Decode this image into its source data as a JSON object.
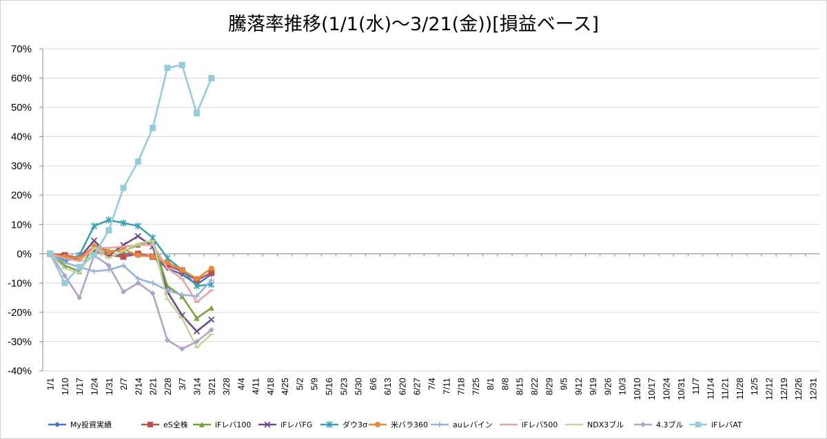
{
  "chart_data": {
    "type": "line",
    "title": "騰落率推移(1/1(水)～3/21(金))[損益ベース]",
    "xlabel": "",
    "ylabel": "",
    "ylim": [
      -0.4,
      0.7
    ],
    "ytick_labels": [
      "70%",
      "60%",
      "50%",
      "40%",
      "30%",
      "20%",
      "10%",
      "0%",
      "-10%",
      "-20%",
      "-30%",
      "-40%"
    ],
    "grid": "horizontal",
    "legend_position": "bottom",
    "x_axis_labels": [
      "1/1",
      "1/10",
      "1/17",
      "1/24",
      "1/31",
      "2/7",
      "2/14",
      "2/21",
      "2/28",
      "3/7",
      "3/14",
      "3/21",
      "3/28",
      "4/4",
      "4/11",
      "4/18",
      "4/25",
      "5/2",
      "5/9",
      "5/16",
      "5/23",
      "5/30",
      "6/6",
      "6/13",
      "6/20",
      "6/27",
      "7/4",
      "7/11",
      "7/18",
      "7/25",
      "8/1",
      "8/8",
      "8/15",
      "8/22",
      "8/29",
      "9/5",
      "9/12",
      "9/19",
      "9/26",
      "10/3",
      "10/10",
      "10/17",
      "10/24",
      "10/31",
      "11/7",
      "11/14",
      "11/21",
      "11/28",
      "12/5",
      "12/12",
      "12/19",
      "12/26",
      "12/31"
    ],
    "x_data": [
      "1/1",
      "1/10",
      "1/17",
      "1/24",
      "1/31",
      "2/7",
      "2/14",
      "2/21",
      "2/28",
      "3/7",
      "3/14",
      "3/21"
    ],
    "series": [
      {
        "name": "My投資実績",
        "color": "#4472C4",
        "marker": "diamond",
        "values": [
          0,
          -0.02,
          -0.02,
          0.02,
          -0.01,
          0.0,
          0.0,
          -0.01,
          -0.05,
          -0.07,
          -0.105,
          -0.07
        ]
      },
      {
        "name": "eS全株",
        "color": "#C0504D",
        "marker": "square",
        "values": [
          0,
          -0.005,
          -0.015,
          0.01,
          -0.005,
          -0.01,
          0.0,
          -0.01,
          -0.04,
          -0.06,
          -0.09,
          -0.065
        ]
      },
      {
        "name": "iFレバ100",
        "color": "#77A33E",
        "marker": "triangle",
        "values": [
          0,
          -0.04,
          -0.06,
          0.03,
          0.01,
          0.01,
          0.03,
          0.045,
          -0.11,
          -0.145,
          -0.22,
          -0.185
        ]
      },
      {
        "name": "iFレバFG",
        "color": "#6A4A8C",
        "marker": "x",
        "values": [
          0,
          -0.02,
          -0.015,
          0.045,
          -0.005,
          0.03,
          0.06,
          0.025,
          -0.13,
          -0.21,
          -0.265,
          -0.225
        ]
      },
      {
        "name": "ダウ3σ",
        "color": "#3A9FB5",
        "marker": "star",
        "values": [
          0,
          -0.025,
          -0.005,
          0.095,
          0.115,
          0.105,
          0.095,
          0.055,
          -0.015,
          -0.055,
          -0.11,
          -0.105
        ]
      },
      {
        "name": "米バラ360",
        "color": "#E8883A",
        "marker": "circle",
        "values": [
          0,
          -0.01,
          -0.015,
          0.025,
          0.005,
          0.015,
          -0.005,
          -0.01,
          -0.03,
          -0.055,
          -0.085,
          -0.05
        ]
      },
      {
        "name": "auレバイン",
        "color": "#95B3D7",
        "marker": "plus",
        "values": [
          0,
          -0.03,
          -0.045,
          -0.06,
          -0.055,
          -0.04,
          -0.085,
          -0.1,
          -0.125,
          -0.14,
          -0.145,
          -0.09
        ]
      },
      {
        "name": "iFレバ500",
        "color": "#E6A4A2",
        "marker": "dash",
        "values": [
          0,
          -0.015,
          -0.025,
          0.02,
          0.02,
          0.025,
          0.03,
          0.03,
          -0.05,
          -0.085,
          -0.165,
          -0.125
        ]
      },
      {
        "name": "NDX3ブル",
        "color": "#C2D69B",
        "marker": "dash",
        "values": [
          0,
          -0.05,
          -0.065,
          0.02,
          -0.015,
          0.01,
          0.035,
          0.045,
          -0.155,
          -0.22,
          -0.32,
          -0.275
        ]
      },
      {
        "name": "4.3ブル",
        "color": "#B3A2C7",
        "marker": "diamond",
        "values": [
          0,
          -0.075,
          -0.15,
          -0.005,
          -0.04,
          -0.13,
          -0.1,
          -0.135,
          -0.295,
          -0.325,
          -0.3,
          -0.26
        ]
      },
      {
        "name": "iFレバAT",
        "color": "#93CDDD",
        "marker": "square",
        "values": [
          0,
          -0.1,
          -0.045,
          -0.005,
          0.08,
          0.225,
          0.315,
          0.43,
          0.635,
          0.645,
          0.48,
          0.6
        ]
      }
    ]
  }
}
